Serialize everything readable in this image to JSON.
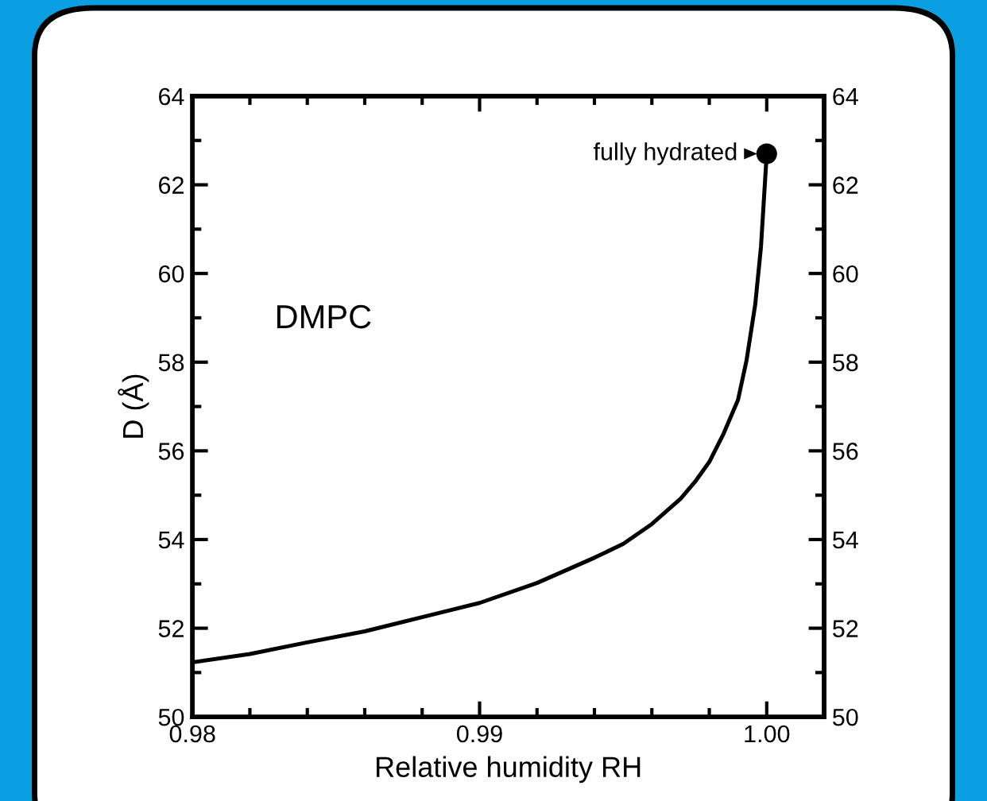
{
  "chart_data": {
    "type": "line",
    "xlabel": "Relative humidity RH",
    "ylabel": "D (Å)",
    "x": [
      0.98,
      0.982,
      0.984,
      0.986,
      0.988,
      0.99,
      0.992,
      0.994,
      0.995,
      0.996,
      0.997,
      0.9975,
      0.998,
      0.9985,
      0.999,
      0.9993,
      0.9996,
      0.9998,
      1.0
    ],
    "series": [
      {
        "color": "#000000",
        "values": [
          51.23,
          51.42,
          51.68,
          51.93,
          52.25,
          52.57,
          53.02,
          53.59,
          53.9,
          54.35,
          54.92,
          55.3,
          55.75,
          56.39,
          57.15,
          58.05,
          59.3,
          60.6,
          62.7
        ]
      },
      {
        "type": "scatter",
        "color": "#000000",
        "marker": "circle",
        "x": [
          1.0
        ],
        "values": [
          62.7
        ]
      }
    ],
    "xlim": [
      0.98,
      1.002
    ],
    "xticks": [
      {
        "value": 0.98,
        "label": "0.98"
      },
      {
        "value": 0.99,
        "label": "0.99"
      },
      {
        "value": 1.0,
        "label": "1.00"
      }
    ],
    "ylim": [
      50,
      64
    ],
    "yticks": [
      50,
      52,
      54,
      56,
      58,
      60,
      62,
      64
    ],
    "y2lim": [
      50,
      64
    ],
    "y2ticks": [
      50,
      52,
      54,
      56,
      58,
      60,
      62,
      64
    ],
    "annotations": [
      {
        "text": "fully hydrated",
        "x": 1.0,
        "y": 62.7
      },
      "DMPC"
    ],
    "grid": false
  }
}
